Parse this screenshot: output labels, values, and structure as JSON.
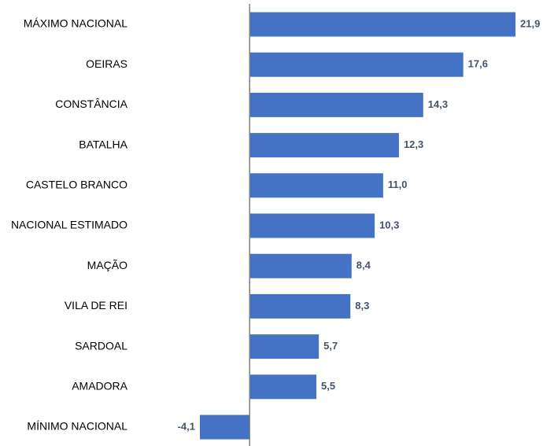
{
  "chart_data": {
    "type": "bar",
    "orientation": "horizontal",
    "categories": [
      "MÁXIMO NACIONAL",
      "OEIRAS",
      "CONSTÂNCIA",
      "BATALHA",
      "CASTELO BRANCO",
      "NACIONAL ESTIMADO",
      "MAÇÃO",
      "VILA DE REI",
      "SARDOAL",
      "AMADORA",
      "MÍNIMO NACIONAL"
    ],
    "values": [
      21.9,
      17.6,
      14.3,
      12.3,
      11.0,
      10.3,
      8.4,
      8.3,
      5.7,
      5.5,
      -4.1
    ],
    "value_labels": [
      "21,9",
      "17,6",
      "14,3",
      "12,3",
      "11,0",
      "10,3",
      "8,4",
      "8,3",
      "5,7",
      "5,5",
      "-4,1"
    ],
    "color": "#4472c4"
  }
}
